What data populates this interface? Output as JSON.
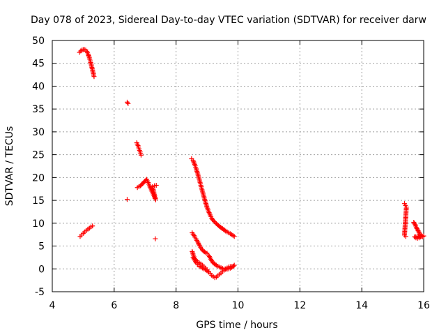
{
  "chart_data": {
    "type": "scatter",
    "title": "Day 078 of 2023, Sidereal Day-to-day VTEC variation (SDTVAR) for receiver darw",
    "xlabel": "GPS time / hours",
    "ylabel": "SDTVAR / TECUs",
    "xlim": [
      4,
      16
    ],
    "ylim": [
      -5,
      50
    ],
    "xticks": [
      "4",
      "6",
      "8",
      "10",
      "12",
      "14",
      "16"
    ],
    "yticks": [
      "-5",
      "0",
      "5",
      "10",
      "15",
      "20",
      "25",
      "30",
      "35",
      "40",
      "45",
      "50"
    ],
    "grid": true,
    "marker": "plus",
    "colors": {
      "points": "#ff0000",
      "grid": "#a0a0a0",
      "axes": "#000000"
    },
    "segments": [
      {
        "name": "arc-1-top",
        "points": [
          [
            4.88,
            47.4
          ],
          [
            4.92,
            47.7
          ],
          [
            4.96,
            47.9
          ],
          [
            5.0,
            48.0
          ],
          [
            5.04,
            48.0
          ],
          [
            5.08,
            47.9
          ],
          [
            5.12,
            47.6
          ],
          [
            5.16,
            47.0
          ],
          [
            5.2,
            46.2
          ],
          [
            5.24,
            45.2
          ],
          [
            5.28,
            44.1
          ],
          [
            5.32,
            43.0
          ],
          [
            5.35,
            42.1
          ]
        ]
      },
      {
        "name": "arc-1-bottom",
        "points": [
          [
            4.9,
            7.1
          ],
          [
            4.95,
            7.4
          ],
          [
            5.0,
            7.8
          ],
          [
            5.05,
            8.1
          ],
          [
            5.1,
            8.4
          ],
          [
            5.15,
            8.7
          ],
          [
            5.2,
            8.9
          ],
          [
            5.25,
            9.2
          ],
          [
            5.3,
            9.4
          ]
        ]
      },
      {
        "name": "isolated-high",
        "points": [
          [
            6.42,
            36.5
          ],
          [
            6.45,
            36.2
          ]
        ]
      },
      {
        "name": "isolated-mid",
        "points": [
          [
            6.42,
            15.2
          ]
        ]
      },
      {
        "name": "arc-2-upper",
        "points": [
          [
            6.73,
            27.6
          ],
          [
            6.77,
            27.0
          ],
          [
            6.8,
            26.3
          ],
          [
            6.84,
            25.6
          ],
          [
            6.87,
            24.9
          ]
        ]
      },
      {
        "name": "arc-2-cluster",
        "points": [
          [
            6.75,
            17.8
          ],
          [
            6.8,
            18.0
          ],
          [
            6.85,
            18.2
          ],
          [
            7.05,
            19.6
          ],
          [
            7.1,
            18.9
          ],
          [
            7.14,
            18.2
          ],
          [
            7.18,
            17.6
          ],
          [
            7.22,
            17.0
          ],
          [
            7.26,
            16.4
          ],
          [
            7.3,
            15.8
          ],
          [
            7.34,
            15.1
          ],
          [
            7.24,
            18.0
          ],
          [
            7.3,
            18.2
          ],
          [
            7.36,
            18.3
          ]
        ]
      },
      {
        "name": "isolated-low",
        "points": [
          [
            7.33,
            6.6
          ]
        ]
      },
      {
        "name": "arc-3-long",
        "points": [
          [
            8.5,
            24.1
          ],
          [
            8.55,
            23.7
          ],
          [
            8.6,
            22.9
          ],
          [
            8.65,
            21.9
          ],
          [
            8.7,
            20.8
          ],
          [
            8.75,
            19.6
          ],
          [
            8.8,
            18.3
          ],
          [
            8.85,
            17.0
          ],
          [
            8.9,
            15.8
          ],
          [
            8.95,
            14.6
          ],
          [
            9.0,
            13.5
          ],
          [
            9.05,
            12.6
          ],
          [
            9.1,
            11.8
          ],
          [
            9.15,
            11.1
          ],
          [
            9.2,
            10.6
          ],
          [
            9.3,
            9.9
          ],
          [
            9.4,
            9.3
          ],
          [
            9.5,
            8.8
          ],
          [
            9.6,
            8.3
          ],
          [
            9.7,
            7.9
          ],
          [
            9.8,
            7.5
          ],
          [
            9.88,
            7.1
          ]
        ]
      },
      {
        "name": "arc-4",
        "points": [
          [
            8.52,
            7.9
          ],
          [
            8.58,
            7.3
          ],
          [
            8.64,
            6.6
          ],
          [
            8.7,
            5.9
          ],
          [
            8.76,
            5.1
          ],
          [
            8.82,
            4.4
          ],
          [
            8.88,
            3.9
          ],
          [
            8.95,
            3.6
          ],
          [
            9.0,
            3.4
          ],
          [
            9.05,
            3.0
          ],
          [
            9.1,
            2.4
          ],
          [
            9.15,
            1.8
          ],
          [
            9.2,
            1.3
          ],
          [
            9.3,
            0.8
          ],
          [
            9.4,
            0.4
          ],
          [
            9.5,
            0.1
          ],
          [
            9.6,
            -0.1
          ],
          [
            9.7,
            0.0
          ],
          [
            9.8,
            0.3
          ],
          [
            9.88,
            0.8
          ]
        ]
      },
      {
        "name": "arc-5-loop",
        "points": [
          [
            8.52,
            3.8
          ],
          [
            8.56,
            3.0
          ],
          [
            8.6,
            2.3
          ],
          [
            8.65,
            1.8
          ],
          [
            8.7,
            1.5
          ],
          [
            8.75,
            1.3
          ],
          [
            8.8,
            1.1
          ],
          [
            8.85,
            0.8
          ],
          [
            8.9,
            0.5
          ],
          [
            8.95,
            0.2
          ],
          [
            9.0,
            -0.2
          ],
          [
            9.05,
            -0.6
          ],
          [
            9.1,
            -1.0
          ],
          [
            9.15,
            -1.4
          ],
          [
            9.2,
            -1.7
          ],
          [
            9.25,
            -1.9
          ],
          [
            9.3,
            -1.8
          ],
          [
            9.35,
            -1.5
          ],
          [
            9.4,
            -1.2
          ],
          [
            9.45,
            -0.9
          ],
          [
            9.5,
            -0.6
          ],
          [
            9.55,
            -0.3
          ],
          [
            9.6,
            0.0
          ],
          [
            9.65,
            0.2
          ],
          [
            9.7,
            0.4
          ],
          [
            9.75,
            0.5
          ],
          [
            9.8,
            0.5
          ],
          [
            9.85,
            0.6
          ]
        ]
      },
      {
        "name": "arc-5-inner",
        "points": [
          [
            8.55,
            2.5
          ],
          [
            8.6,
            1.9
          ],
          [
            8.65,
            1.3
          ],
          [
            8.7,
            0.9
          ],
          [
            8.75,
            0.6
          ],
          [
            8.8,
            0.4
          ],
          [
            8.85,
            0.2
          ],
          [
            8.9,
            0.0
          ],
          [
            8.95,
            -0.2
          ],
          [
            9.0,
            -0.4
          ],
          [
            9.05,
            -0.7
          ],
          [
            9.1,
            -1.0
          ]
        ]
      },
      {
        "name": "arc-6-short",
        "points": [
          [
            15.38,
            14.3
          ],
          [
            15.41,
            13.9
          ],
          [
            15.44,
            13.5
          ],
          [
            15.38,
            7.4
          ],
          [
            15.42,
            7.1
          ]
        ]
      },
      {
        "name": "arc-6-tail",
        "points": [
          [
            15.68,
            10.2
          ],
          [
            15.72,
            9.7
          ],
          [
            15.76,
            9.1
          ],
          [
            15.8,
            8.6
          ],
          [
            15.84,
            8.1
          ],
          [
            15.88,
            7.6
          ],
          [
            15.92,
            7.3
          ],
          [
            15.96,
            7.0
          ],
          [
            16.0,
            7.2
          ],
          [
            15.7,
            7.0
          ],
          [
            15.75,
            6.8
          ],
          [
            15.8,
            6.7
          ],
          [
            15.85,
            6.8
          ],
          [
            15.9,
            7.0
          ]
        ]
      }
    ]
  }
}
